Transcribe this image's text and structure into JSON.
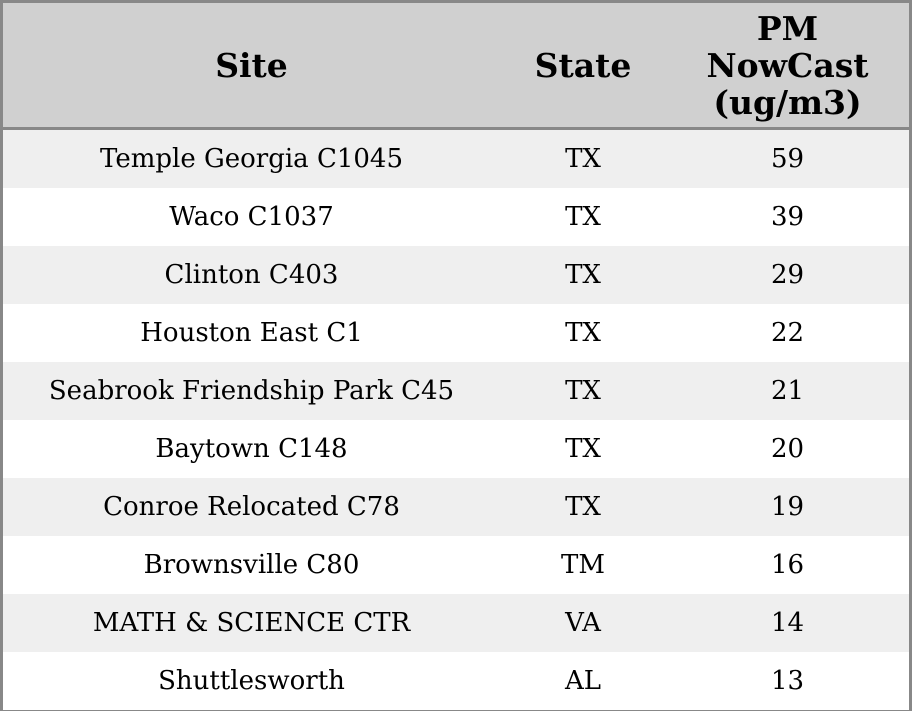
{
  "table": {
    "header": [
      "Site",
      "State",
      "PM NowCast (ug/m3)"
    ],
    "rows": [
      [
        "Temple Georgia C1045",
        "TX",
        59
      ],
      [
        "Waco C1037",
        "TX",
        39
      ],
      [
        "Clinton C403",
        "TX",
        29
      ],
      [
        "Houston East C1",
        "TX",
        22
      ],
      [
        "Seabrook Friendship Park C45",
        "TX",
        21
      ],
      [
        "Baytown C148",
        "TX",
        20
      ],
      [
        "Conroe Relocated C78",
        "TX",
        19
      ],
      [
        "Brownsville C80",
        "TM",
        16
      ],
      [
        "MATH & SCIENCE CTR",
        "VA",
        14
      ],
      [
        "Shuttlesworth",
        "AL",
        13
      ]
    ]
  }
}
